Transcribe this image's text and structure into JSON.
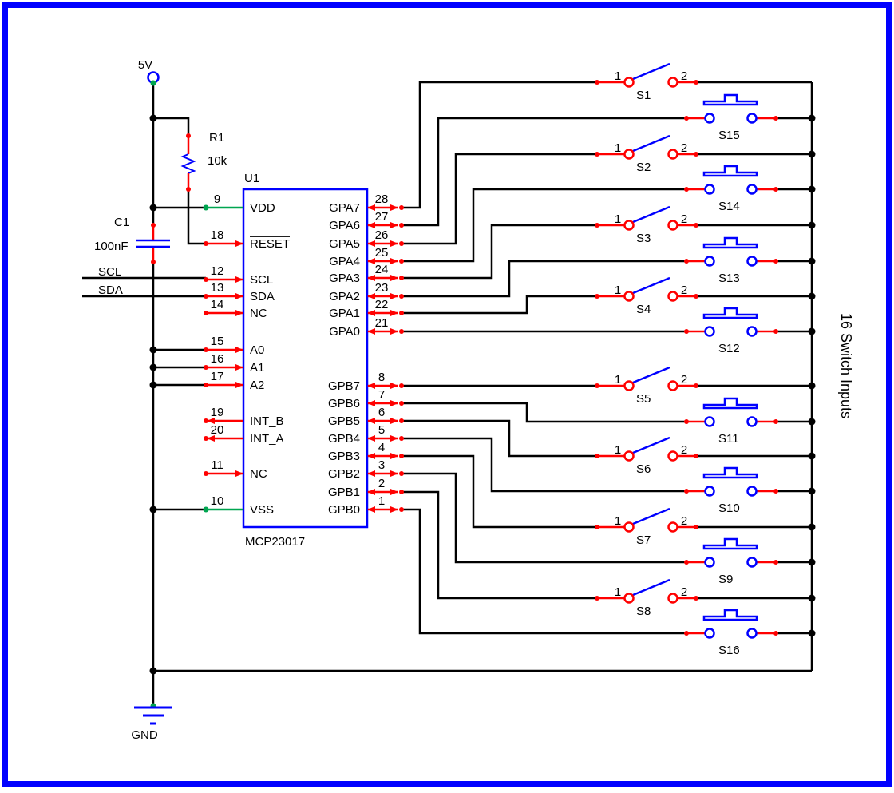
{
  "colors": {
    "wire_black": "#000000",
    "highlight_red": "#ff0000",
    "symbol_blue": "#0000ff",
    "power_green": "#00a550",
    "border_blue": "#0000ff"
  },
  "labels": {
    "power_net": "5V",
    "ground_net": "GND",
    "scl_net": "SCL",
    "sda_net": "SDA",
    "side_note": "16 Switch Inputs"
  },
  "components": {
    "resistor": {
      "ref": "R1",
      "value": "10k"
    },
    "capacitor": {
      "ref": "C1",
      "value": "100nF"
    },
    "ic": {
      "ref": "U1",
      "part": "MCP23017",
      "left_pins": [
        {
          "num": "9",
          "name": "VDD",
          "dir": "power"
        },
        {
          "num": "18",
          "name": "RESET",
          "dir": "in",
          "overline": true
        },
        {
          "num": "12",
          "name": "SCL",
          "dir": "in"
        },
        {
          "num": "13",
          "name": "SDA",
          "dir": "in"
        },
        {
          "num": "14",
          "name": "NC",
          "dir": "in"
        },
        {
          "num": "15",
          "name": "A0",
          "dir": "in"
        },
        {
          "num": "16",
          "name": "A1",
          "dir": "in"
        },
        {
          "num": "17",
          "name": "A2",
          "dir": "in"
        },
        {
          "num": "19",
          "name": "INT_B",
          "dir": "out"
        },
        {
          "num": "20",
          "name": "INT_A",
          "dir": "out"
        },
        {
          "num": "11",
          "name": "NC",
          "dir": "in"
        },
        {
          "num": "10",
          "name": "VSS",
          "dir": "power"
        }
      ],
      "right_pins": [
        {
          "num": "28",
          "name": "GPA7"
        },
        {
          "num": "27",
          "name": "GPA6"
        },
        {
          "num": "26",
          "name": "GPA5"
        },
        {
          "num": "25",
          "name": "GPA4"
        },
        {
          "num": "24",
          "name": "GPA3"
        },
        {
          "num": "23",
          "name": "GPA2"
        },
        {
          "num": "22",
          "name": "GPA1"
        },
        {
          "num": "21",
          "name": "GPA0"
        },
        {
          "num": "8",
          "name": "GPB7"
        },
        {
          "num": "7",
          "name": "GPB6"
        },
        {
          "num": "6",
          "name": "GPB5"
        },
        {
          "num": "5",
          "name": "GPB4"
        },
        {
          "num": "4",
          "name": "GPB3"
        },
        {
          "num": "3",
          "name": "GPB2"
        },
        {
          "num": "2",
          "name": "GPB1"
        },
        {
          "num": "1",
          "name": "GPB0"
        }
      ]
    }
  },
  "switch_rows": [
    {
      "label": "S1",
      "type": "toggle",
      "terminal_1": "1",
      "terminal_2": "2",
      "connects_to": "GPA7"
    },
    {
      "label": "S15",
      "type": "pushbutton",
      "connects_to": "GPA6"
    },
    {
      "label": "S2",
      "type": "toggle",
      "terminal_1": "1",
      "terminal_2": "2",
      "connects_to": "GPA5"
    },
    {
      "label": "S14",
      "type": "pushbutton",
      "connects_to": "GPA4"
    },
    {
      "label": "S3",
      "type": "toggle",
      "terminal_1": "1",
      "terminal_2": "2",
      "connects_to": "GPA3"
    },
    {
      "label": "S13",
      "type": "pushbutton",
      "connects_to": "GPA2"
    },
    {
      "label": "S4",
      "type": "toggle",
      "terminal_1": "1",
      "terminal_2": "2",
      "connects_to": "GPA1"
    },
    {
      "label": "S12",
      "type": "pushbutton",
      "connects_to": "GPA0"
    },
    {
      "label": "S5",
      "type": "toggle",
      "terminal_1": "1",
      "terminal_2": "2",
      "connects_to": "GPB7"
    },
    {
      "label": "S11",
      "type": "pushbutton",
      "connects_to": "GPB6"
    },
    {
      "label": "S6",
      "type": "toggle",
      "terminal_1": "1",
      "terminal_2": "2",
      "connects_to": "GPB5"
    },
    {
      "label": "S10",
      "type": "pushbutton",
      "connects_to": "GPB4"
    },
    {
      "label": "S7",
      "type": "toggle",
      "terminal_1": "1",
      "terminal_2": "2",
      "connects_to": "GPB3"
    },
    {
      "label": "S9",
      "type": "pushbutton",
      "connects_to": "GPB2"
    },
    {
      "label": "S8",
      "type": "toggle",
      "terminal_1": "1",
      "terminal_2": "2",
      "connects_to": "GPB1"
    },
    {
      "label": "S16",
      "type": "pushbutton",
      "connects_to": "GPB0"
    }
  ]
}
